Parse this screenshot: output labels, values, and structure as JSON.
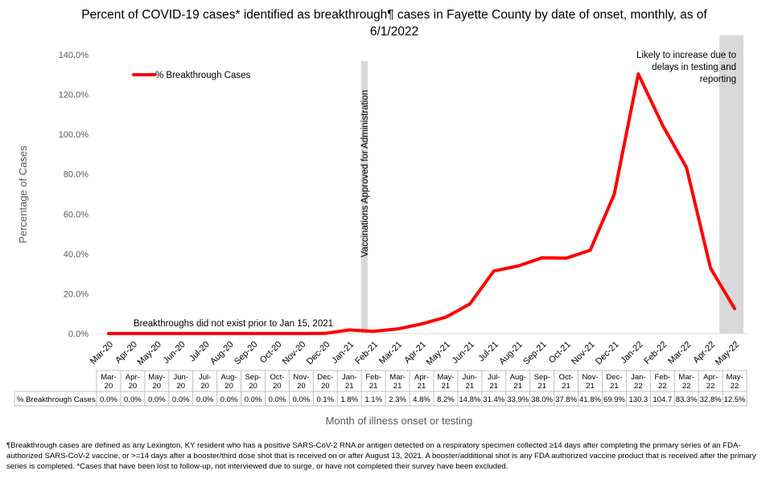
{
  "chart_data": {
    "type": "line",
    "title": "Percent of COVID-19 cases* identified as breakthrough¶ cases in Fayette County by date of onset, monthly, as of 6/1/2022",
    "xlabel": "Month of illness onset or testing",
    "ylabel": "Percentage of Cases",
    "ylim": [
      0,
      140
    ],
    "yticks": [
      "0.0%",
      "20.0%",
      "40.0%",
      "60.0%",
      "80.0%",
      "100.0%",
      "120.0%",
      "140.0%"
    ],
    "grid": false,
    "legend_position": "top-left",
    "categories": [
      "Mar-20",
      "Apr-20",
      "May-20",
      "Jun-20",
      "Jul-20",
      "Aug-20",
      "Sep-20",
      "Oct-20",
      "Nov-20",
      "Dec-20",
      "Jan-21",
      "Feb-21",
      "Mar-21",
      "Apr-21",
      "May-21",
      "Jun-21",
      "Jul-21",
      "Aug-21",
      "Sep-21",
      "Oct-21",
      "Nov-21",
      "Dec-21",
      "Jan-22",
      "Feb-22",
      "Mar-22",
      "Apr-22",
      "May-22"
    ],
    "table_categories": [
      [
        "Mar-",
        "20"
      ],
      [
        "Apr-",
        "20"
      ],
      [
        "May-",
        "20"
      ],
      [
        "Jun-",
        "20"
      ],
      [
        "Jul-",
        "20"
      ],
      [
        "Aug-",
        "20"
      ],
      [
        "Sep-",
        "20"
      ],
      [
        "Oct-",
        "20"
      ],
      [
        "Nov-",
        "20"
      ],
      [
        "Dec-",
        "20"
      ],
      [
        "Jan-",
        "21"
      ],
      [
        "Feb-",
        "21"
      ],
      [
        "Mar-",
        "21"
      ],
      [
        "Apr-",
        "21"
      ],
      [
        "May-",
        "21"
      ],
      [
        "Jun-",
        "21"
      ],
      [
        "Jul-",
        "21"
      ],
      [
        "Aug-",
        "21"
      ],
      [
        "Sep-",
        "21"
      ],
      [
        "Oct-",
        "21"
      ],
      [
        "Nov-",
        "21"
      ],
      [
        "Dec-",
        "21"
      ],
      [
        "Jan-",
        "22"
      ],
      [
        "Feb-",
        "22"
      ],
      [
        "Mar-",
        "22"
      ],
      [
        "Apr-",
        "22"
      ],
      [
        "May-",
        "22"
      ]
    ],
    "series": [
      {
        "name": "% Breakthrough Cases",
        "color": "#ff0000",
        "values": [
          0.0,
          0.0,
          0.0,
          0.0,
          0.0,
          0.0,
          0.0,
          0.0,
          0.0,
          0.1,
          1.8,
          1.1,
          2.3,
          4.8,
          8.2,
          14.8,
          31.4,
          33.9,
          38.0,
          37.8,
          41.8,
          69.9,
          130.3,
          104.7,
          83.3,
          32.8,
          12.5
        ],
        "labels": [
          "0.0%",
          "0.0%",
          "0.0%",
          "0.0%",
          "0.0%",
          "0.0%",
          "0.0%",
          "0.0%",
          "0.0%",
          "0.1%",
          "1.8%",
          "1.1%",
          "2.3%",
          "4.8%",
          "8.2%",
          "14.8%",
          "31.4%",
          "33.9%",
          "38.0%",
          "37.8%",
          "41.8%",
          "69.9%",
          "130.3",
          "104.7",
          "83.3%",
          "32.8%",
          "12.5%"
        ]
      }
    ],
    "annotations": {
      "vaccination_line": "Vaccinations Approved for Administration",
      "pre_breakthrough": "Breakthroughs did not exist prior to Jan 15, 2021",
      "delay_note": [
        "Likely to increase due to",
        "delays in testing and",
        "reporting"
      ]
    },
    "highlight_colors": {
      "vaccination_band": "#d9d9d9",
      "recent_band": "#d9d9d9"
    }
  },
  "footnote": "¶Breakthrough cases are defined as any Lexington, KY resident who has a positive SARS-CoV-2 RNA or antigen detected on a respiratory specimen collected ≥14 days after completing the primary series of an FDA-authorized SARS-CoV-2 vaccine, or >=14 days after a booster/third dose shot that is received on or after August 13, 2021.  A booster/additional shot is any FDA authorized vaccine product that is received after the primary series is completed.  *Cases that have been lost to follow-up, not interviewed due to surge, or have not completed their survey have been excluded."
}
